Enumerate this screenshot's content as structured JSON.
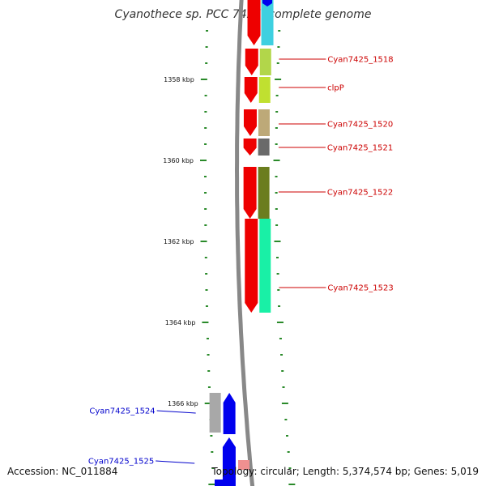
{
  "title": "Cyanothece sp. PCC 7425, complete genome",
  "accession": "Accession: NC_011884",
  "topology": "Topology: circular; Length: 5,374,574 bp; Genes: 5,019",
  "ticks": [
    {
      "kbp": 1358,
      "label": "1358 kbp"
    },
    {
      "kbp": 1360,
      "label": "1360 kbp"
    },
    {
      "kbp": 1362,
      "label": "1362 kbp"
    },
    {
      "kbp": 1364,
      "label": "1364 kbp"
    },
    {
      "kbp": 1366,
      "label": "1366 kbp"
    }
  ],
  "forward_genes": [
    {
      "name": "Cyan7425_1518",
      "color": "#b2d64a"
    },
    {
      "name": "clpP",
      "color": "#c0e030"
    },
    {
      "name": "Cyan7425_1520",
      "color": "#bda978"
    },
    {
      "name": "Cyan7425_1521",
      "color": "#6a6a6a"
    },
    {
      "name": "Cyan7425_1522",
      "color": "#6b7d1e"
    },
    {
      "name": "Cyan7425_1523",
      "color": "#19f0a6"
    }
  ],
  "reverse_genes": [
    {
      "name": "Cyan7425_1524",
      "color": "#a8a8a8"
    },
    {
      "name": "Cyan7425_1525",
      "color": "#0000ee"
    }
  ],
  "colors": {
    "forward_strand": "#ee0000",
    "reverse_strand": "#0000ee",
    "backbone": "#888888",
    "tick": "#2a8a2a",
    "forward_label": "#cc0000",
    "reverse_label": "#0000cc",
    "top_cyan": "#3ed0e0"
  }
}
